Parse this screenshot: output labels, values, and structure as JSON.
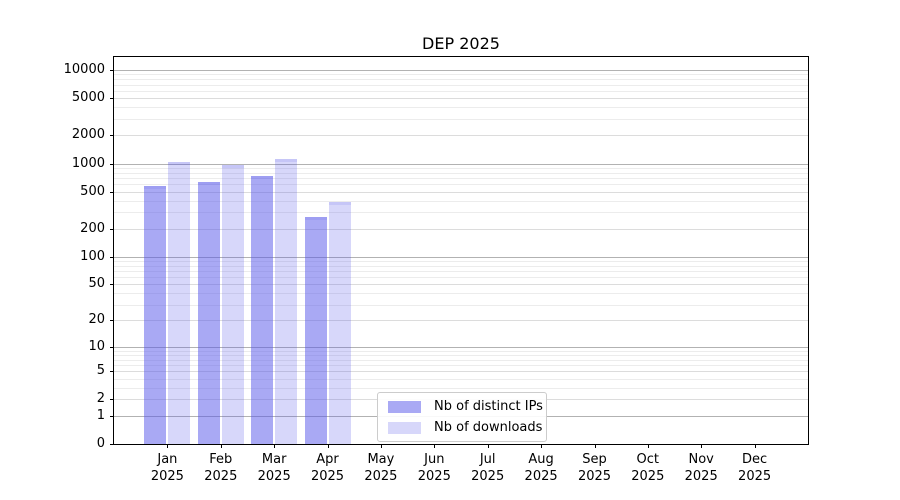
{
  "chart_data": {
    "type": "bar",
    "title": "DEP 2025",
    "xlabel": "",
    "ylabel": "",
    "categories": [
      "Jan 2025",
      "Feb 2025",
      "Mar 2025",
      "Apr 2025",
      "May 2025",
      "Jun 2025",
      "Jul 2025",
      "Aug 2025",
      "Sep 2025",
      "Oct 2025",
      "Nov 2025",
      "Dec 2025"
    ],
    "series": [
      {
        "name": "Nb of distinct IPs",
        "color": "rgba(83,83,233,0.5)",
        "values": [
          575,
          640,
          735,
          268,
          null,
          null,
          null,
          null,
          null,
          null,
          null,
          null
        ]
      },
      {
        "name": "Nb of downloads",
        "color": "rgba(83,83,233,0.23)",
        "values": [
          1030,
          960,
          1130,
          385,
          null,
          null,
          null,
          null,
          null,
          null,
          null,
          null
        ]
      }
    ],
    "yscale": "log10(value+1)",
    "y_ticks": [
      0,
      1,
      2,
      5,
      10,
      20,
      50,
      100,
      200,
      500,
      1000,
      2000,
      5000,
      10000
    ],
    "ylim": [
      0,
      13000
    ],
    "grid": true,
    "legend_position": "bottom-center",
    "colors": {
      "major_grid": "#b2b2b2",
      "minor_grid": "#ececec",
      "axis": "#000000"
    }
  }
}
